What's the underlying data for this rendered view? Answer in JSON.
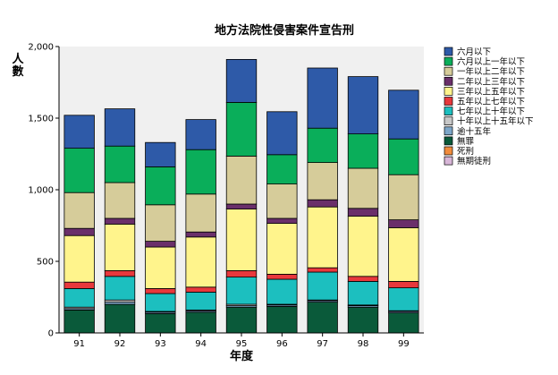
{
  "chart_data": {
    "type": "bar",
    "stacked": true,
    "title": "地方法院性侵害案件宣告刑",
    "xlabel": "年度",
    "ylabel": "人數",
    "ylim": [
      0,
      2000
    ],
    "yticks": [
      0,
      500,
      1000,
      1500,
      2000
    ],
    "ytick_labels": [
      "0",
      "500",
      "1,000",
      "1,500",
      "2,000"
    ],
    "grid": false,
    "legend_position": "right",
    "categories": [
      "91",
      "92",
      "93",
      "94",
      "95",
      "96",
      "97",
      "98",
      "99"
    ],
    "series": [
      {
        "name": "無期徒刑",
        "color": "#d8b6d8",
        "values": [
          0,
          0,
          0,
          0,
          0,
          0,
          0,
          0,
          0
        ]
      },
      {
        "name": "死刑",
        "color": "#f28c3c",
        "values": [
          0,
          0,
          0,
          0,
          0,
          0,
          0,
          0,
          0
        ]
      },
      {
        "name": "無罪",
        "color": "#0a5a3a",
        "values": [
          160,
          200,
          135,
          145,
          180,
          185,
          215,
          180,
          140
        ]
      },
      {
        "name": "逾十五年",
        "color": "#7da6c8",
        "values": [
          10,
          15,
          10,
          10,
          10,
          10,
          10,
          10,
          10
        ]
      },
      {
        "name": "十年以上十五年以下",
        "color": "#c8c8c8",
        "values": [
          10,
          15,
          5,
          5,
          10,
          5,
          5,
          5,
          5
        ]
      },
      {
        "name": "七年以上十年以下",
        "color": "#1cbfbf",
        "values": [
          130,
          165,
          125,
          125,
          190,
          175,
          195,
          165,
          160
        ]
      },
      {
        "name": "五年以上七年以下",
        "color": "#e8383c",
        "values": [
          45,
          40,
          35,
          35,
          45,
          35,
          30,
          35,
          45
        ]
      },
      {
        "name": "三年以上五年以下",
        "color": "#fff48c",
        "values": [
          325,
          325,
          290,
          350,
          430,
          355,
          425,
          420,
          375
        ]
      },
      {
        "name": "二年以上三年以下",
        "color": "#6a2f6a",
        "values": [
          50,
          40,
          40,
          35,
          35,
          35,
          50,
          55,
          55
        ]
      },
      {
        "name": "一年以上二年以下",
        "color": "#d6cc9a",
        "values": [
          250,
          250,
          255,
          265,
          335,
          240,
          260,
          280,
          315
        ]
      },
      {
        "name": "六月以上一年以下",
        "color": "#0aae5a",
        "values": [
          310,
          255,
          265,
          310,
          375,
          205,
          240,
          240,
          250
        ]
      },
      {
        "name": "六月以下",
        "color": "#2e5aa8",
        "values": [
          230,
          260,
          170,
          210,
          300,
          300,
          420,
          400,
          340
        ]
      }
    ]
  }
}
